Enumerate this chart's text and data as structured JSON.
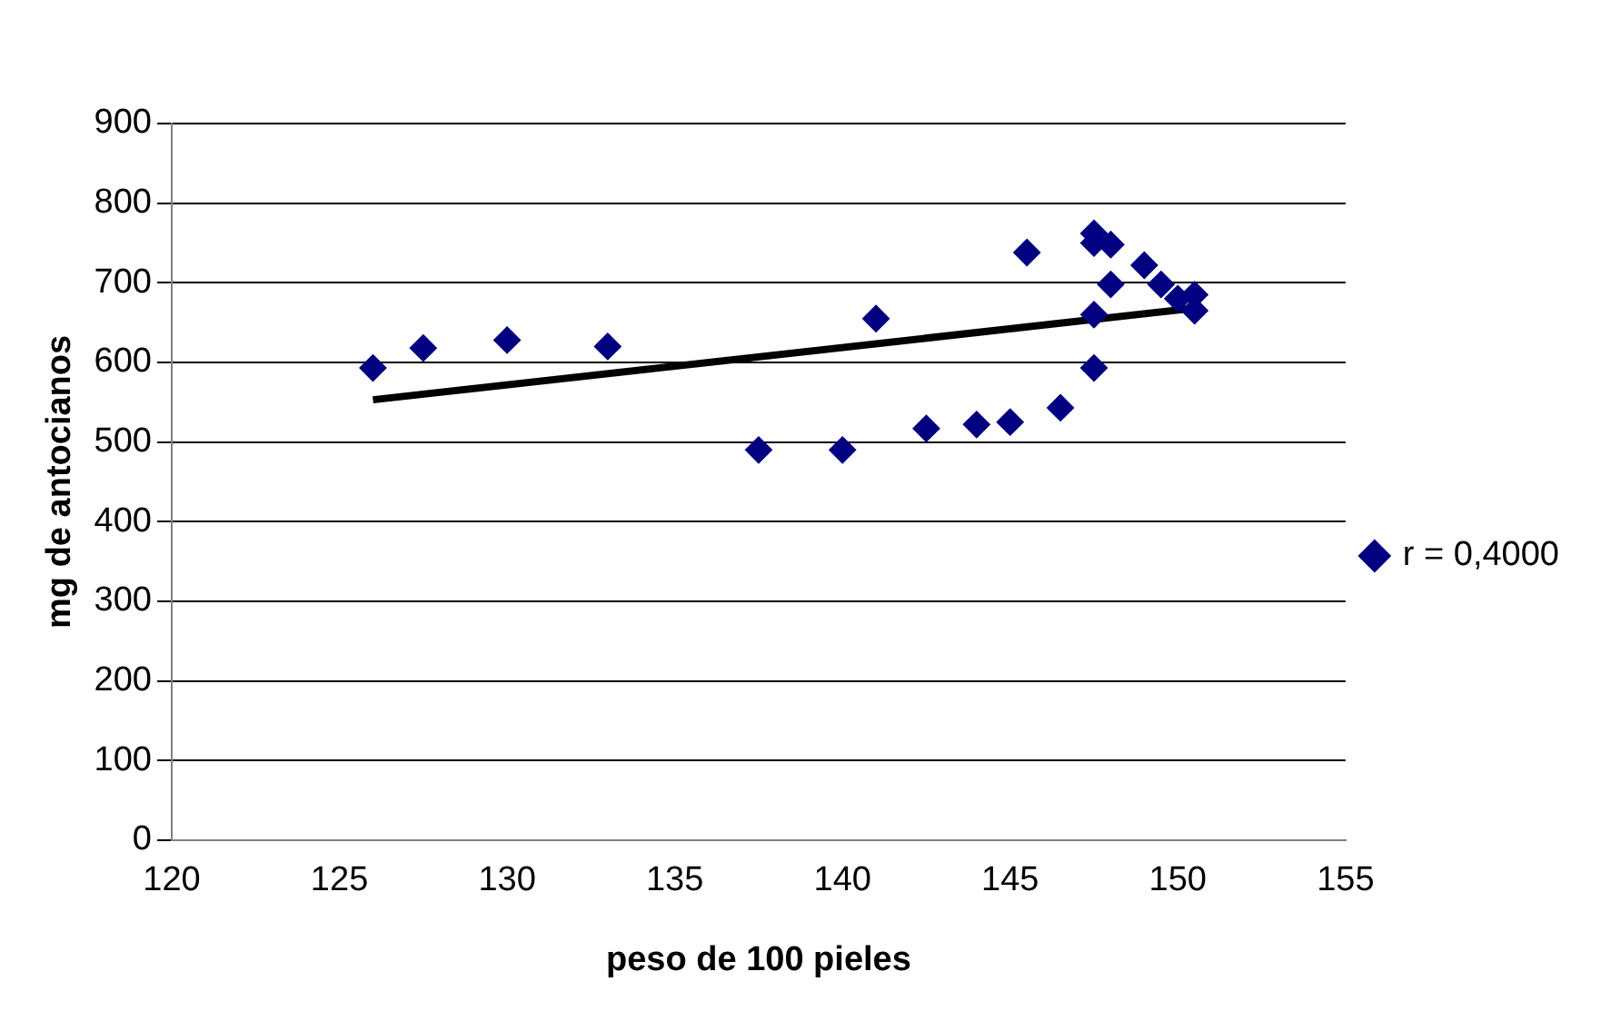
{
  "chart_data": {
    "type": "scatter",
    "xlabel": "peso de 100 pieles",
    "ylabel": "mg de antocianos",
    "series": [
      {
        "name": "r = 0,4000",
        "color": "#000080",
        "marker": "diamond",
        "x": [
          126,
          127.5,
          130,
          133,
          137.5,
          140,
          141,
          142.5,
          144,
          145,
          145.5,
          146.5,
          147.5,
          147.5,
          147.5,
          147.5,
          148,
          148,
          149,
          149.5,
          150,
          150.5,
          150.5
        ],
        "values": [
          593,
          618,
          628,
          620,
          490,
          490,
          655,
          517,
          522,
          525,
          738,
          543,
          593,
          660,
          750,
          762,
          748,
          698,
          722,
          698,
          680,
          685,
          665
        ]
      },
      {
        "type": "line",
        "color": "#000000",
        "marker": "none",
        "x": [
          126,
          150.5
        ],
        "values": [
          553,
          668
        ]
      }
    ],
    "xlim": [
      120,
      155
    ],
    "xticks": [
      120,
      125,
      130,
      135,
      140,
      145,
      150,
      155
    ],
    "ylim": [
      0,
      900
    ],
    "yticks": [
      0,
      100,
      200,
      300,
      400,
      500,
      600,
      700,
      800,
      900
    ],
    "grid": "y",
    "legend": "right"
  }
}
